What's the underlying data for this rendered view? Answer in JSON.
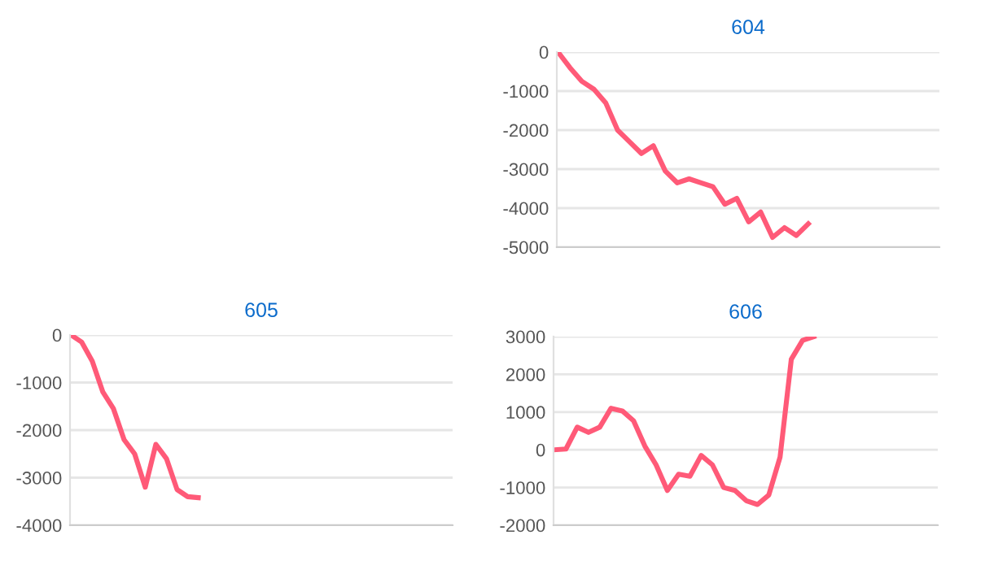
{
  "chart_data": [
    {
      "type": "line",
      "title": "604",
      "categories": [
        null,
        null,
        null,
        null,
        null,
        null,
        null,
        null,
        null,
        null,
        null,
        null,
        null,
        null,
        null,
        null,
        null,
        null,
        null,
        null,
        null,
        null,
        null,
        null,
        null,
        null,
        null,
        null,
        null,
        null,
        null,
        null,
        null
      ],
      "series": [
        {
          "color": "#ff5a78",
          "values": [
            0,
            -400,
            -750,
            -950,
            -1300,
            -2000,
            -2300,
            -2600,
            -2400,
            -3050,
            -3350,
            -3250,
            -3350,
            -3450,
            -3900,
            -3750,
            -4350,
            -4100,
            -4750,
            -4500,
            -4700,
            -4400,
            null,
            null,
            null,
            null,
            null,
            null,
            null,
            null,
            null,
            null,
            null
          ]
        }
      ],
      "ylim": [
        -5000,
        0
      ],
      "yticks": [
        -5000,
        -4000,
        -3000,
        -2000,
        -1000,
        0
      ],
      "grid": "y",
      "tick_labels": "y",
      "marker": "none",
      "line_style": "solid"
    },
    {
      "type": "line",
      "title": "605",
      "categories": [
        null,
        null,
        null,
        null,
        null,
        null,
        null,
        null,
        null,
        null,
        null,
        null,
        null,
        null,
        null,
        null,
        null,
        null,
        null,
        null,
        null,
        null,
        null,
        null,
        null,
        null,
        null,
        null,
        null,
        null,
        null,
        null,
        null,
        null,
        null,
        null,
        null
      ],
      "series": [
        {
          "color": "#ff5a78",
          "values": [
            0,
            -150,
            -550,
            -1200,
            -1550,
            -2200,
            -2500,
            -3200,
            -2300,
            -2600,
            -3250,
            -3400,
            -3420,
            null,
            null,
            null,
            null,
            null,
            null,
            null,
            null,
            null,
            null,
            null,
            null,
            null,
            null,
            null,
            null,
            null,
            null,
            null,
            null,
            null,
            null,
            null,
            null
          ]
        }
      ],
      "ylim": [
        -4000,
        0
      ],
      "yticks": [
        -4000,
        -3000,
        -2000,
        -1000,
        0
      ],
      "grid": "y",
      "tick_labels": "y",
      "marker": "none",
      "line_style": "solid"
    },
    {
      "type": "line",
      "title": "606",
      "categories": [
        null,
        null,
        null,
        null,
        null,
        null,
        null,
        null,
        null,
        null,
        null,
        null,
        null,
        null,
        null,
        null,
        null,
        null,
        null,
        null,
        null,
        null,
        null,
        null,
        null,
        null,
        null,
        null,
        null,
        null,
        null,
        null,
        null,
        null,
        null
      ],
      "series": [
        {
          "color": "#ff5a78",
          "values": [
            0,
            20,
            600,
            460,
            600,
            1100,
            1030,
            770,
            100,
            -400,
            -1080,
            -650,
            -700,
            -150,
            -400,
            -1000,
            -1080,
            -1350,
            -1450,
            -1200,
            -200,
            2400,
            2900,
            3000,
            null,
            null,
            null,
            null,
            null,
            null,
            null,
            null,
            null,
            null,
            null
          ]
        }
      ],
      "ylim": [
        -2000,
        3000
      ],
      "yticks": [
        -2000,
        -1000,
        0,
        1000,
        2000,
        3000
      ],
      "grid": "y",
      "tick_labels": "y",
      "marker": "none",
      "line_style": "solid"
    }
  ]
}
